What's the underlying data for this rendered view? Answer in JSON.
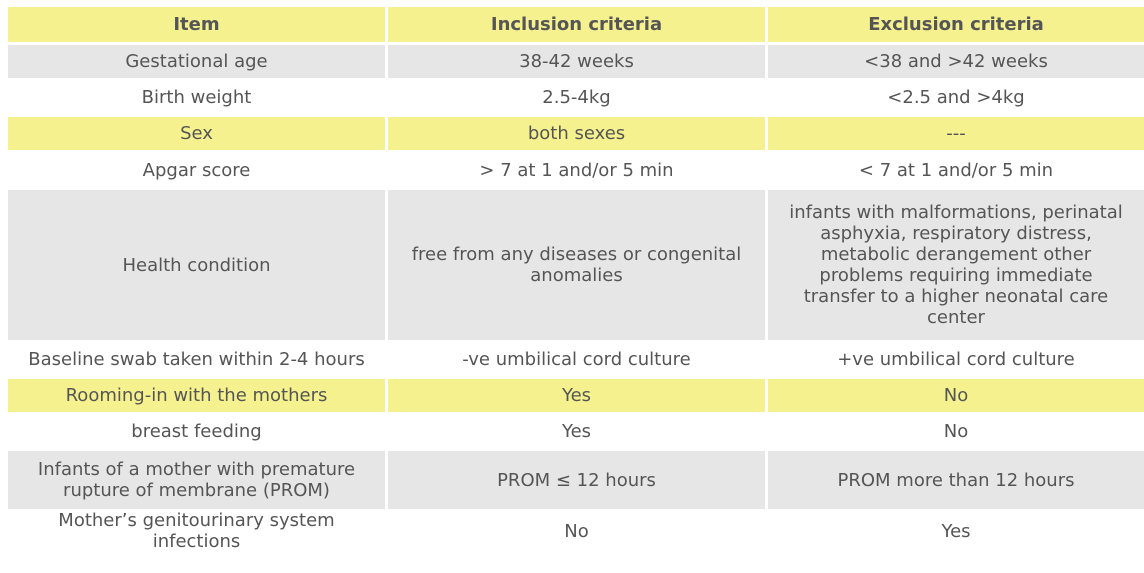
{
  "table": {
    "headers": [
      "Item",
      "Inclusion criteria",
      "Exclusion criteria"
    ],
    "rows": [
      {
        "item": "Gestational age",
        "inclusion": "38-42 weeks",
        "exclusion": "<38 and >42 weeks"
      },
      {
        "item": "Birth weight",
        "inclusion": "2.5-4kg",
        "exclusion": "<2.5 and >4kg"
      },
      {
        "item": "Sex",
        "inclusion": "both sexes",
        "exclusion": "---"
      },
      {
        "item": "Apgar score",
        "inclusion": "> 7 at 1 and/or 5 min",
        "exclusion": "< 7 at 1 and/or 5 min"
      },
      {
        "item": "Health condition",
        "inclusion": "free from any diseases or congenital anomalies",
        "exclusion": "infants with malformations, perinatal asphyxia, respiratory distress, metabolic derangement other problems requiring immediate transfer to a higher neonatal care center"
      },
      {
        "item": "Baseline swab taken within 2-4 hours",
        "inclusion": "-ve umbilical cord culture",
        "exclusion": "+ve umbilical cord culture"
      },
      {
        "item": "Rooming-in with the mothers",
        "inclusion": "Yes",
        "exclusion": "No"
      },
      {
        "item": "breast feeding",
        "inclusion": "Yes",
        "exclusion": "No"
      },
      {
        "item": "Infants of a mother with premature rupture of membrane (PROM)",
        "inclusion": "PROM ≤ 12 hours",
        "exclusion": "PROM more than 12 hours"
      },
      {
        "item": "Mother’s genitourinary system infections",
        "inclusion": "No",
        "exclusion": "Yes"
      }
    ]
  },
  "colors": {
    "header_bg": "#f5f18e",
    "stripe_grey": "#e6e6e6",
    "stripe_yellow": "#f5f18e",
    "text": "#555555"
  }
}
